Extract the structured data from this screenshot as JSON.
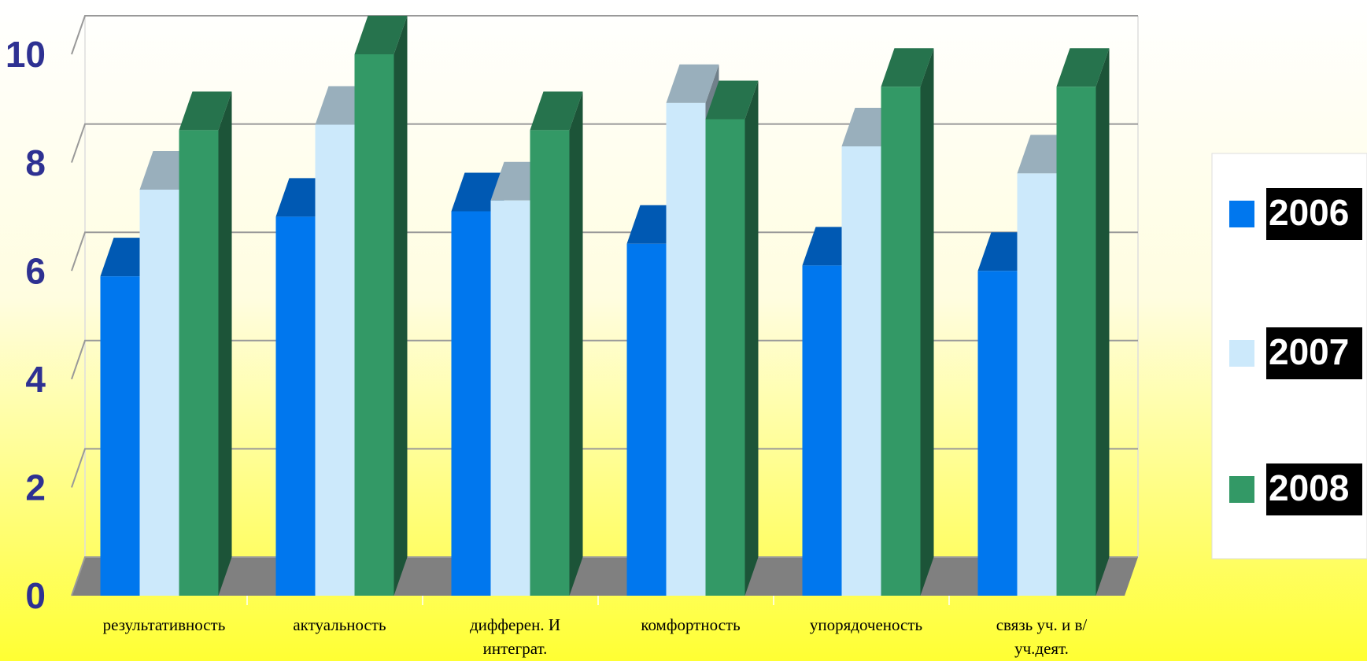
{
  "chart_data": {
    "type": "bar3d",
    "categories": [
      "результативность",
      "актуальность",
      "дифферен. И интеграт.",
      "комфортность",
      "упорядоченость",
      "связь уч. и в/уч.деят."
    ],
    "series": [
      {
        "name": "2006",
        "color": "#0077ee",
        "values": [
          5.9,
          7.0,
          7.1,
          6.5,
          6.1,
          6.0
        ]
      },
      {
        "name": "2007",
        "color": "#cce9fb",
        "values": [
          7.5,
          8.7,
          7.3,
          9.1,
          8.3,
          7.8
        ]
      },
      {
        "name": "2008",
        "color": "#339966",
        "values": [
          8.6,
          10.0,
          8.6,
          8.8,
          9.4,
          9.4
        ]
      }
    ],
    "ylim": [
      0,
      10
    ],
    "yticks": [
      0,
      2,
      4,
      6,
      8,
      10
    ],
    "grid": true,
    "legend": "right"
  }
}
